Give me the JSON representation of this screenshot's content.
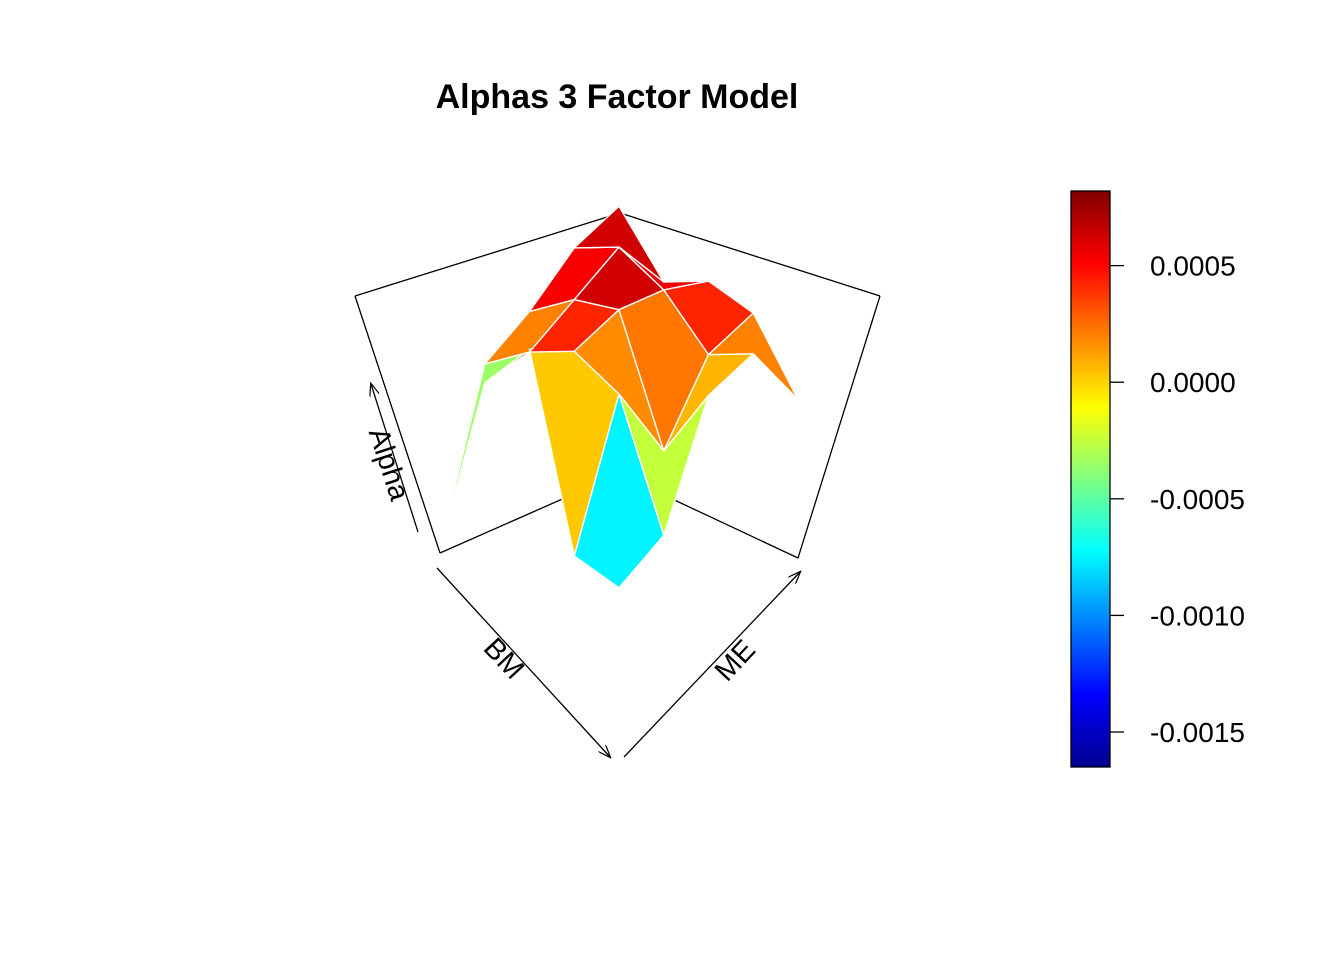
{
  "chart_data": {
    "type": "surface3d",
    "title": "Alphas 3 Factor Model",
    "xlabel": "BM",
    "ylabel": "ME",
    "zlabel": "Alpha",
    "colorbar": {
      "palette": [
        "#00008F",
        "#0000FF",
        "#0080FF",
        "#00FFFF",
        "#80FF80",
        "#FFFF00",
        "#FF8000",
        "#FF0000",
        "#800000"
      ],
      "range": [
        -0.00165,
        0.00082
      ],
      "ticks": [
        0.0005,
        0.0,
        -0.0005,
        -0.001,
        -0.0015
      ],
      "tick_labels": [
        "0.0005",
        "0.0000",
        "-0.0005",
        "-0.0010",
        "-0.0015"
      ]
    },
    "grid_note": "BM rows x ME columns",
    "z": [
      [
        -0.0016,
        0.0001,
        0.0006,
        -0.0011,
        -0.0012
      ],
      [
        -0.0001,
        0.0002,
        0.0004,
        0.0002,
        -0.0009
      ],
      [
        0.0002,
        0.0005,
        0.0006,
        -0.0005,
        0.0002
      ],
      [
        0.0006,
        0.0008,
        0.0006,
        0.0002,
        0.0004
      ],
      [
        0.0008,
        0.0003,
        0.0005,
        0.0004,
        -0.0002
      ]
    ]
  }
}
